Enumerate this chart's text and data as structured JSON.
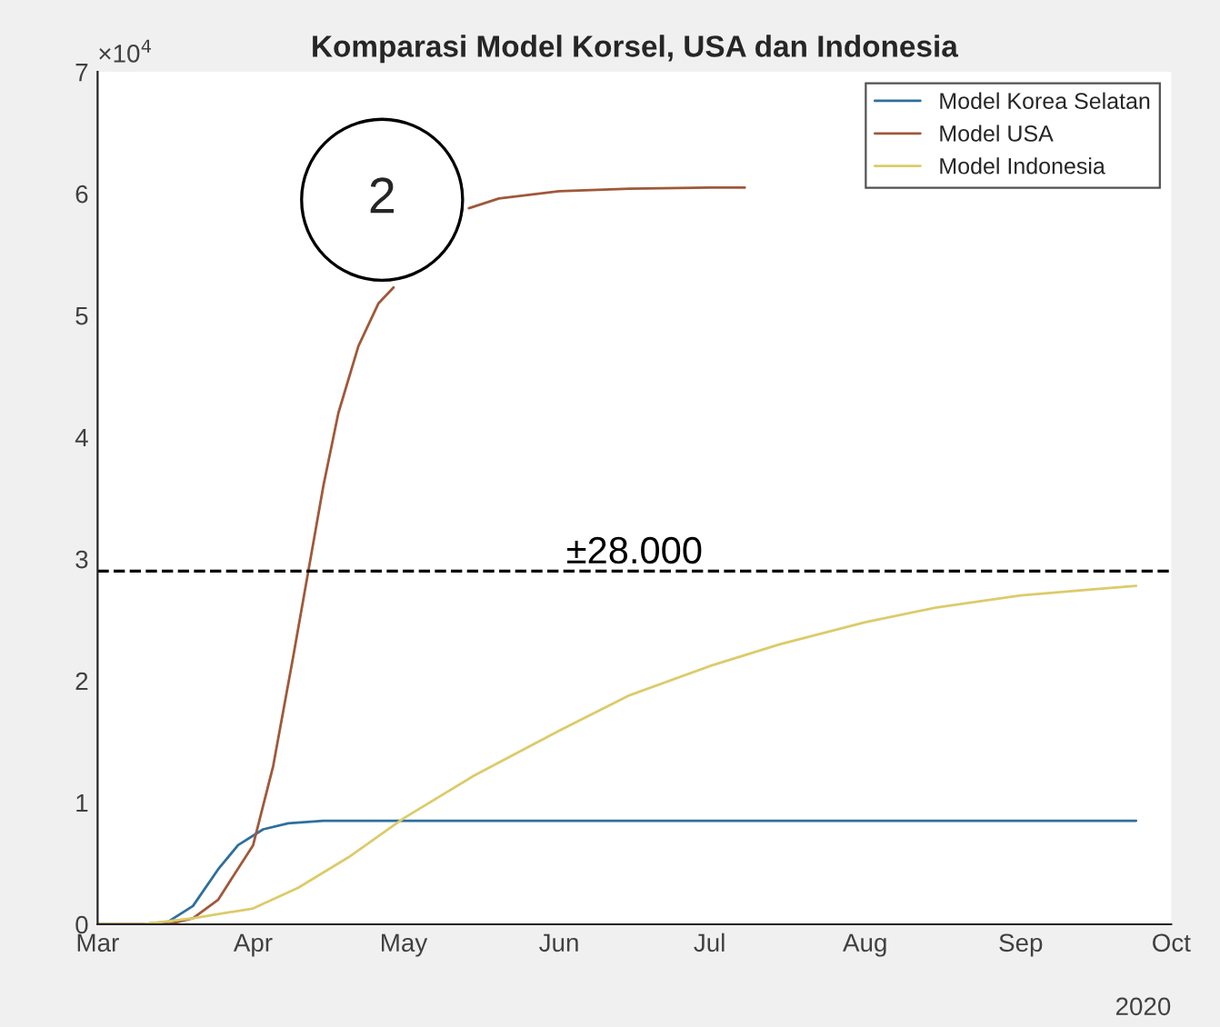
{
  "chart_data": {
    "type": "line",
    "title": "Komparasi Model Korsel, USA dan Indonesia",
    "xlim": [
      "2020-03-01",
      "2020-10-01"
    ],
    "xticks": [
      {
        "value": "2020-03-01",
        "label": "Mar"
      },
      {
        "value": "2020-04-01",
        "label": "Apr"
      },
      {
        "value": "2020-05-01",
        "label": "May"
      },
      {
        "value": "2020-06-01",
        "label": "Jun"
      },
      {
        "value": "2020-07-01",
        "label": "Jul"
      },
      {
        "value": "2020-08-01",
        "label": "Aug"
      },
      {
        "value": "2020-09-01",
        "label": "Sep"
      },
      {
        "value": "2020-10-01",
        "label": "Oct"
      }
    ],
    "ylim": [
      0,
      7
    ],
    "yticks": [
      0,
      1,
      2,
      3,
      4,
      5,
      6,
      7
    ],
    "grid": false,
    "legend": "top right",
    "marker": "none",
    "line_style": "solid",
    "annotations": [
      "×10$^{4}$",
      "2020",
      "2",
      "±28.000"
    ],
    "ref_lines": [
      {
        "axis": "y",
        "value": 2.9,
        "color": "#000000",
        "line_style": "dashed"
      }
    ],
    "series": [
      {
        "name": "Model Korea Selatan",
        "color": "#2e6f9e",
        "x": [
          "2020-03-01",
          "2020-03-10",
          "2020-03-15",
          "2020-03-20",
          "2020-03-25",
          "2020-03-29",
          "2020-04-03",
          "2020-04-08",
          "2020-04-15",
          "2020-09-24"
        ],
        "values": [
          0,
          0,
          0.02,
          0.15,
          0.45,
          0.65,
          0.78,
          0.83,
          0.85,
          0.85
        ]
      },
      {
        "name": "Model USA",
        "color": "#a0583a",
        "x": [
          "2020-03-01",
          "2020-03-15",
          "2020-03-20",
          "2020-03-25",
          "2020-04-01",
          "2020-04-05",
          "2020-04-09",
          "2020-04-12",
          "2020-04-15",
          "2020-04-18",
          "2020-04-22",
          "2020-04-26",
          "2020-04-29",
          "2020-05-05",
          "2020-05-14",
          "2020-05-20",
          "2020-06-01",
          "2020-06-15",
          "2020-07-01",
          "2020-07-08"
        ],
        "values": [
          0,
          0,
          0.05,
          0.2,
          0.65,
          1.3,
          2.2,
          2.9,
          3.6,
          4.2,
          4.75,
          5.1,
          5.23,
          null,
          5.88,
          5.96,
          6.02,
          6.04,
          6.05,
          6.05
        ]
      },
      {
        "name": "Model Indonesia",
        "color": "#dccb6a",
        "x": [
          "2020-03-01",
          "2020-03-10",
          "2020-03-20",
          "2020-04-01",
          "2020-04-10",
          "2020-04-20",
          "2020-05-01",
          "2020-05-15",
          "2020-06-01",
          "2020-06-15",
          "2020-07-01",
          "2020-07-15",
          "2020-08-01",
          "2020-08-15",
          "2020-09-01",
          "2020-09-15",
          "2020-09-24"
        ],
        "values": [
          0,
          0,
          0.05,
          0.13,
          0.3,
          0.55,
          0.87,
          1.22,
          1.59,
          1.88,
          2.12,
          2.3,
          2.48,
          2.6,
          2.7,
          2.75,
          2.78
        ]
      }
    ]
  }
}
